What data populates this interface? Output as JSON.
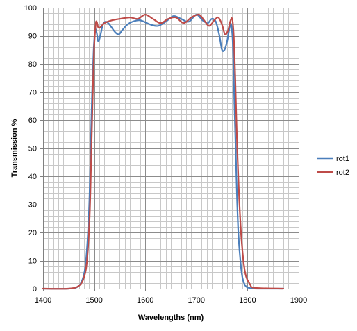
{
  "chart_data": {
    "type": "line",
    "title": "",
    "xlabel": "Wavelengths (nm)",
    "ylabel": "Transmission %",
    "xlim": [
      1400,
      1900
    ],
    "ylim": [
      0,
      100
    ],
    "x_major_step": 100,
    "x_minor_step": 10,
    "y_major_step": 10,
    "y_minor_step": 2,
    "grid": true,
    "legend_position": "right",
    "series": [
      {
        "name": "rot1",
        "color": "#4a7ebb",
        "x": [
          1400,
          1450,
          1470,
          1480,
          1485,
          1490,
          1493,
          1496,
          1499,
          1502,
          1505,
          1508,
          1512,
          1517,
          1523,
          1530,
          1540,
          1548,
          1555,
          1565,
          1575,
          1590,
          1610,
          1625,
          1640,
          1655,
          1670,
          1685,
          1700,
          1712,
          1722,
          1730,
          1738,
          1745,
          1750,
          1755,
          1760,
          1765,
          1768,
          1771,
          1773,
          1776,
          1779,
          1782,
          1786,
          1790,
          1796,
          1805,
          1820,
          1870
        ],
        "y": [
          0,
          0,
          1,
          5,
          12,
          28,
          48,
          70,
          85,
          92,
          91,
          88,
          90,
          94,
          95,
          94,
          91.5,
          90.5,
          92,
          94,
          95,
          95.5,
          94,
          93.5,
          95,
          97,
          96,
          95,
          97.5,
          95.5,
          94.5,
          96,
          95,
          90,
          85,
          85,
          88,
          93,
          94,
          88,
          75,
          55,
          35,
          20,
          10,
          4,
          1,
          0.2,
          0,
          0
        ]
      },
      {
        "name": "rot2",
        "color": "#be4b48",
        "x": [
          1400,
          1450,
          1470,
          1480,
          1486,
          1491,
          1494,
          1497,
          1500,
          1503,
          1505,
          1508,
          1512,
          1520,
          1535,
          1550,
          1570,
          1585,
          1600,
          1615,
          1630,
          1645,
          1660,
          1675,
          1690,
          1705,
          1715,
          1725,
          1735,
          1743,
          1750,
          1756,
          1762,
          1766,
          1770,
          1773,
          1776,
          1779,
          1783,
          1788,
          1795,
          1805,
          1815,
          1870
        ],
        "y": [
          0,
          0,
          1,
          4,
          10,
          25,
          45,
          68,
          86,
          94,
          95,
          93,
          93,
          94.5,
          95.5,
          96,
          96.5,
          96,
          97.5,
          96,
          94.5,
          96,
          96.5,
          94.5,
          96.5,
          97.5,
          95.5,
          93.5,
          95.5,
          96.5,
          94,
          90.5,
          92,
          95,
          96,
          90,
          75,
          55,
          35,
          18,
          6,
          1.5,
          0.3,
          0
        ]
      }
    ]
  }
}
